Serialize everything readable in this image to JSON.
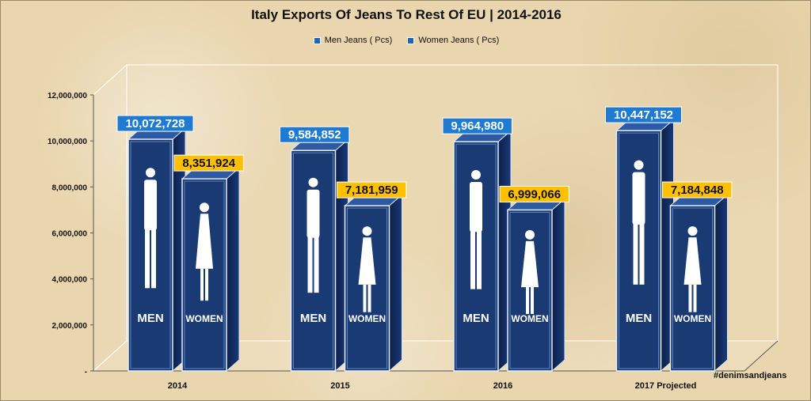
{
  "chart_data": {
    "type": "bar",
    "title": "Italy Exports Of Jeans To Rest Of EU | 2014-2016",
    "categories": [
      "2014",
      "2015",
      "2016",
      "2017 Projected"
    ],
    "series": [
      {
        "name": "Men Jeans ( Pcs)",
        "color": "#1f66b7",
        "label_bg": "#1f7ad2",
        "values": [
          10072728,
          9584852,
          9964980,
          10447152
        ],
        "labels": [
          "10,072,728",
          "9,584,852",
          "9,964,980",
          "10,447,152"
        ],
        "text": "MEN",
        "icon": "man-restroom-icon"
      },
      {
        "name": "Women Jeans ( Pcs)",
        "color": "#1f66b7",
        "label_bg": "#ffc000",
        "values": [
          8351924,
          7181959,
          6999066,
          7184848
        ],
        "labels": [
          "8,351,924",
          "7,181,959",
          "6,999,066",
          "7,184,848"
        ],
        "text": "WOMEN",
        "icon": "woman-restroom-icon"
      }
    ],
    "ylim": [
      0,
      12000000
    ],
    "yticks": [
      0,
      2000000,
      4000000,
      6000000,
      8000000,
      10000000,
      12000000
    ],
    "ytick_labels": [
      "-",
      "2,000,000",
      "4,000,000",
      "6,000,000",
      "8,000,000",
      "10,000,000",
      "12,000,000"
    ],
    "grid": false,
    "legend_position": "top",
    "watermark": "#denimsandjeans"
  }
}
